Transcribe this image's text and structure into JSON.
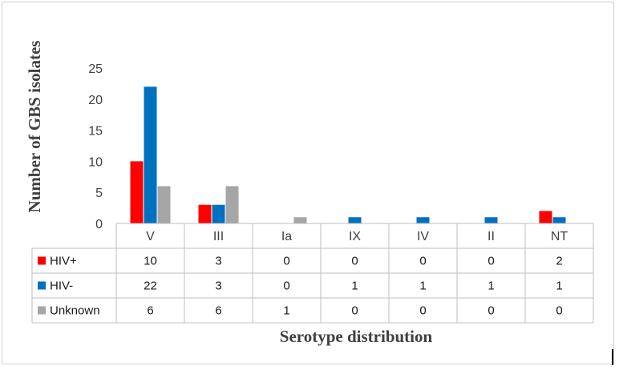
{
  "chart_data": {
    "type": "bar",
    "title": "",
    "xlabel": "Serotype distribution",
    "ylabel": "Number of GBS isolates",
    "categories": [
      "V",
      "III",
      "Ia",
      "IX",
      "IV",
      "II",
      "NT"
    ],
    "ylim": [
      0,
      25
    ],
    "yticks": [
      "0",
      "5",
      "10",
      "15",
      "20",
      "25"
    ],
    "grid": false,
    "legend": "data-table-left",
    "series": [
      {
        "name": "HIV+",
        "color": "#ff0000",
        "values": [
          10,
          3,
          0,
          0,
          0,
          0,
          2
        ]
      },
      {
        "name": "HIV-",
        "color": "#0070c0",
        "values": [
          22,
          3,
          0,
          1,
          1,
          1,
          1
        ]
      },
      {
        "name": "Unknown",
        "color": "#a6a6a6",
        "values": [
          6,
          6,
          1,
          0,
          0,
          0,
          0
        ]
      }
    ]
  }
}
